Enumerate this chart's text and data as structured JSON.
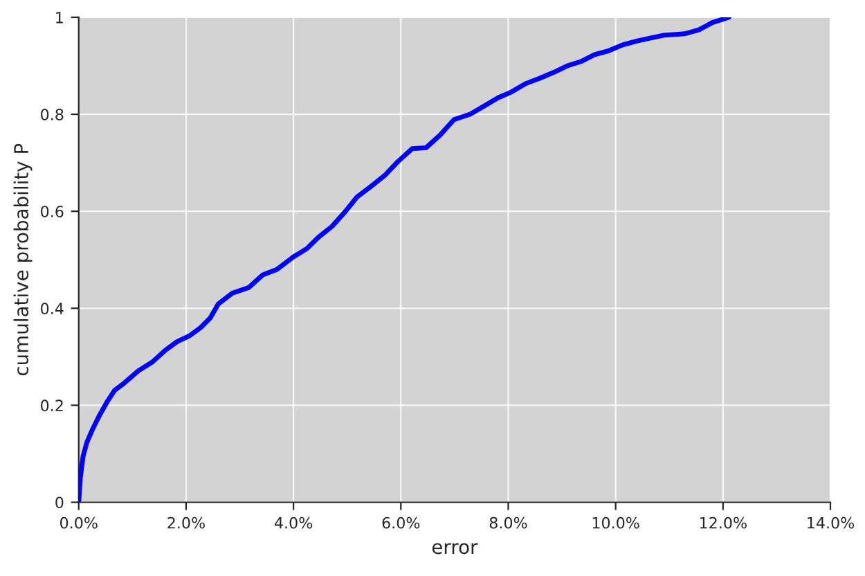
{
  "chart_data": {
    "type": "line",
    "xlabel": "error",
    "ylabel": "cumulative probability P",
    "series": [
      {
        "color": "#0000ff",
        "x": [
          0,
          0.03,
          0.08,
          0.15,
          0.26,
          0.39,
          0.54,
          0.67,
          0.85,
          1.11,
          1.37,
          1.62,
          1.83,
          2.06,
          2.27,
          2.45,
          2.6,
          2.86,
          3.17,
          3.43,
          3.69,
          4.0,
          4.25,
          4.46,
          4.72,
          4.97,
          5.18,
          5.44,
          5.7,
          5.95,
          6.21,
          6.47,
          6.73,
          6.99,
          7.29,
          7.55,
          7.81,
          8.06,
          8.32,
          8.58,
          8.84,
          9.1,
          9.36,
          9.61,
          9.87,
          10.13,
          10.39,
          10.64,
          10.9,
          11.29,
          11.55,
          11.8,
          12.11
        ],
        "values": [
          0,
          0.05,
          0.094,
          0.123,
          0.151,
          0.18,
          0.209,
          0.231,
          0.246,
          0.271,
          0.289,
          0.314,
          0.331,
          0.343,
          0.36,
          0.38,
          0.409,
          0.431,
          0.443,
          0.469,
          0.48,
          0.506,
          0.523,
          0.546,
          0.569,
          0.6,
          0.629,
          0.651,
          0.674,
          0.703,
          0.729,
          0.731,
          0.757,
          0.789,
          0.8,
          0.817,
          0.834,
          0.846,
          0.863,
          0.874,
          0.886,
          0.9,
          0.909,
          0.923,
          0.931,
          0.943,
          0.951,
          0.957,
          0.963,
          0.966,
          0.974,
          0.989,
          1.0
        ]
      }
    ],
    "xlim": [
      0,
      14
    ],
    "xticks": [
      {
        "value": 0,
        "label": "0.0%"
      },
      {
        "value": 2,
        "label": "2.0%"
      },
      {
        "value": 4,
        "label": "4.0%"
      },
      {
        "value": 6,
        "label": "6.0%"
      },
      {
        "value": 8,
        "label": "8.0%"
      },
      {
        "value": 10,
        "label": "10.0%"
      },
      {
        "value": 12,
        "label": "12.0%"
      },
      {
        "value": 14,
        "label": "14.0%"
      }
    ],
    "ylim": [
      0,
      1
    ],
    "yticks": [
      0,
      0.2,
      0.4,
      0.6,
      0.8,
      1
    ],
    "grid": true,
    "line_style": "solid"
  }
}
